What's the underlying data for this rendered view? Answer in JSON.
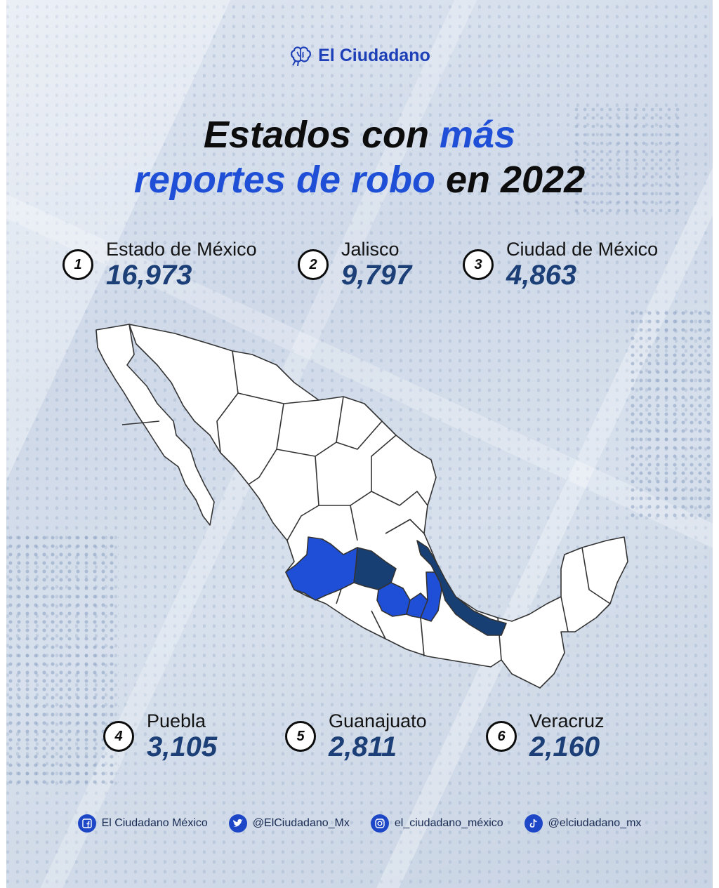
{
  "brand": {
    "name": "El Ciudadano",
    "accent": "#1f4fd6",
    "dark_blue": "#1b3f76"
  },
  "title": {
    "part1": "Estados con ",
    "part2": "más",
    "part3": "reportes de robo",
    "part4": " en 2022"
  },
  "ranking": [
    {
      "rank": "1",
      "state": "Estado de México",
      "value": "16,973",
      "color": "#1f4fd6"
    },
    {
      "rank": "2",
      "state": "Jalisco",
      "value": "9,797",
      "color": "#1f4fd6"
    },
    {
      "rank": "3",
      "state": "Ciudad de México",
      "value": "4,863",
      "color": "#1f4fd6"
    },
    {
      "rank": "4",
      "state": "Puebla",
      "value": "3,105",
      "color": "#1f4fd6"
    },
    {
      "rank": "5",
      "state": "Guanajuato",
      "value": "2,811",
      "color": "#173f74"
    },
    {
      "rank": "6",
      "state": "Veracruz",
      "value": "2,160",
      "color": "#173f74"
    }
  ],
  "map": {
    "highlight_light": "#1f4fd6",
    "highlight_dark": "#173f74",
    "base_fill": "#ffffff",
    "border": "#333333"
  },
  "footer": [
    {
      "icon": "facebook-icon",
      "label": "El Ciudadano México"
    },
    {
      "icon": "twitter-icon",
      "label": "@ElCiudadano_Mx"
    },
    {
      "icon": "instagram-icon",
      "label": "el_ciudadano_méxico"
    },
    {
      "icon": "tiktok-icon",
      "label": "@elciudadano_mx"
    }
  ]
}
